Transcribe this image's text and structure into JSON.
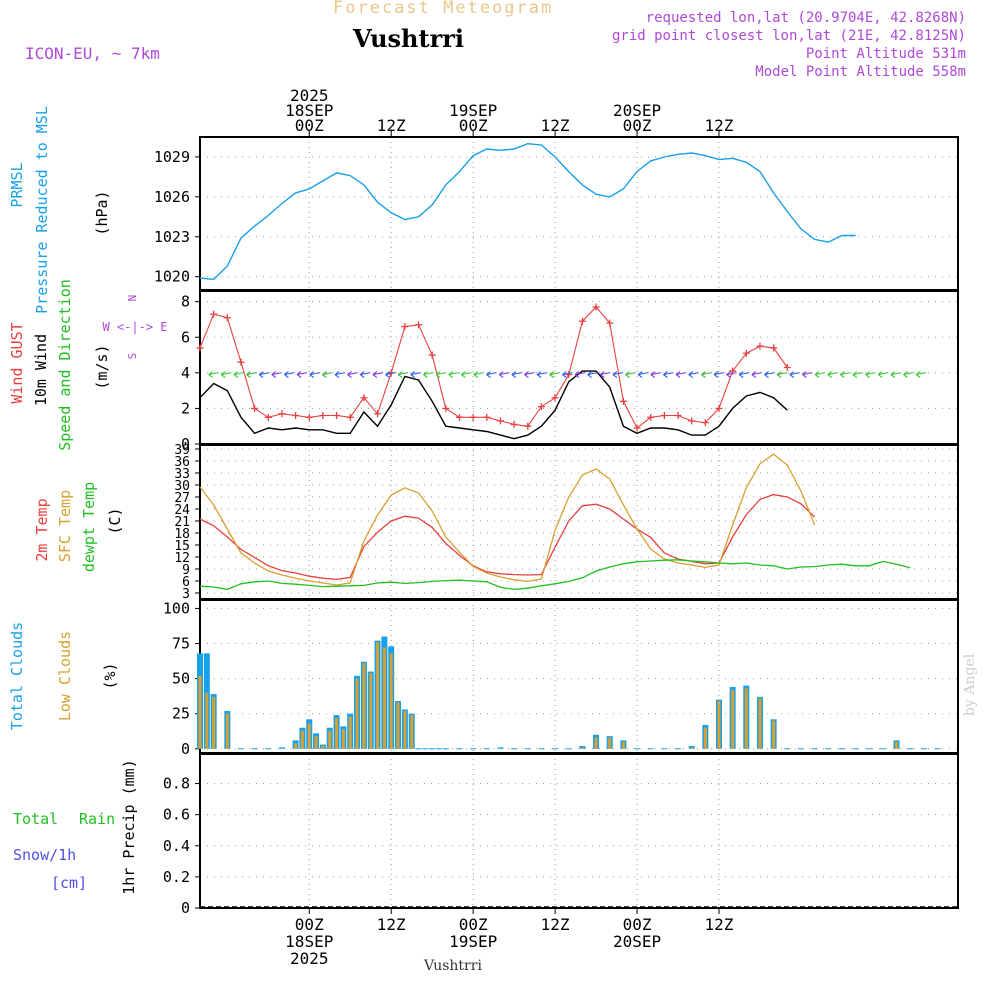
{
  "header": {
    "title_sup": "Forecast Meteogram",
    "location": "Vushtrri",
    "model": "ICON-EU, ~ 7km",
    "info_lines": [
      "requested lon,lat (20.9704E, 42.8268N)",
      "grid point closest lon,lat (21E, 42.8125N)",
      "Point Altitude 531m",
      "Model Point Altitude 558m"
    ],
    "credit": "by Angel",
    "footer": "Vushtrri"
  },
  "colors": {
    "pressure": "#18a0e8",
    "gust": "#e84040",
    "wind": "#000000",
    "windarrow": "#38c838",
    "temp": "#e84040",
    "sfc": "#d8a030",
    "dewpt": "#20c020",
    "total_clouds": "#18a0e8",
    "low_clouds": "#d8a030",
    "rain": "#20c020",
    "snow": "#5050e0",
    "purple": "#b048d8"
  },
  "chart_data": [
    {
      "type": "line",
      "title": "PRMSL Pressure Reduced to MSL",
      "ylabel": "(hPa)",
      "ylim": [
        1019,
        1030.5
      ],
      "yticks": [
        1020,
        1023,
        1026,
        1029
      ],
      "x_hours": [
        -16,
        -14,
        -12,
        -10,
        -8,
        -6,
        -4,
        -2,
        0,
        2,
        4,
        6,
        8,
        10,
        12,
        14,
        16,
        18,
        20,
        22,
        24,
        26,
        28,
        30,
        32,
        34,
        36,
        38,
        40,
        42,
        44,
        46,
        48,
        50,
        52,
        54,
        56,
        58,
        60,
        62,
        64,
        66,
        68,
        70,
        72,
        74,
        76,
        78,
        80,
        82,
        84,
        86,
        88,
        90,
        92
      ],
      "series": [
        {
          "name": "PRMSL",
          "values": [
            1019.9,
            1019.8,
            1020.8,
            1022.9,
            1023.8,
            1024.6,
            1025.5,
            1026.3,
            1026.6,
            1027.2,
            1027.8,
            1027.6,
            1026.9,
            1025.6,
            1024.8,
            1024.3,
            1024.5,
            1025.4,
            1026.9,
            1027.9,
            1029.1,
            1029.6,
            1029.5,
            1029.6,
            1030.0,
            1029.9,
            1029.0,
            1027.9,
            1026.9,
            1026.2,
            1026.0,
            1026.6,
            1027.9,
            1028.7,
            1029.0,
            1029.2,
            1029.3,
            1029.1,
            1028.8,
            1028.9,
            1028.6,
            1027.9,
            1026.3,
            1024.9,
            1023.6,
            1022.8,
            1022.6,
            1023.1,
            1023.1
          ]
        }
      ]
    },
    {
      "type": "line",
      "title": "Wind GUST / 10m Wind Speed and Direction",
      "ylabel": "(m/s)",
      "ylim": [
        0,
        8.6
      ],
      "yticks": [
        0,
        2,
        4,
        6,
        8
      ],
      "compass": [
        "N",
        "W <-|-> E",
        "S"
      ],
      "x_hours": [
        -16,
        -14,
        -12,
        -10,
        -8,
        -6,
        -4,
        -2,
        0,
        2,
        4,
        6,
        8,
        10,
        12,
        14,
        16,
        18,
        20,
        22,
        24,
        26,
        28,
        30,
        32,
        34,
        36,
        38,
        40,
        42,
        44,
        46,
        48,
        50,
        52,
        54,
        56,
        58,
        60,
        62,
        64,
        66,
        68,
        70,
        72,
        74,
        76,
        78,
        80,
        82,
        84,
        86,
        88,
        90,
        92
      ],
      "series": [
        {
          "name": "Wind GUST",
          "values": [
            5.4,
            7.3,
            7.1,
            4.6,
            2.0,
            1.5,
            1.7,
            1.6,
            1.5,
            1.6,
            1.6,
            1.5,
            2.6,
            1.7,
            4.0,
            6.6,
            6.7,
            5.0,
            2.0,
            1.5,
            1.5,
            1.5,
            1.3,
            1.1,
            1.0,
            2.1,
            2.6,
            3.9,
            6.9,
            7.7,
            6.8,
            2.4,
            0.9,
            1.5,
            1.6,
            1.6,
            1.3,
            1.2,
            2.0,
            4.1,
            5.1,
            5.5,
            5.4,
            4.3
          ]
        },
        {
          "name": "10m Wind",
          "values": [
            2.6,
            3.4,
            3.0,
            1.5,
            0.6,
            0.9,
            0.8,
            0.9,
            0.8,
            0.8,
            0.6,
            0.6,
            1.8,
            1.0,
            2.2,
            3.8,
            3.6,
            2.4,
            1.0,
            0.9,
            0.8,
            0.7,
            0.5,
            0.3,
            0.5,
            1.0,
            1.9,
            3.5,
            4.1,
            4.1,
            3.2,
            1.0,
            0.6,
            0.9,
            0.9,
            0.8,
            0.5,
            0.5,
            1.0,
            2.0,
            2.7,
            2.9,
            2.6,
            1.9
          ]
        }
      ]
    },
    {
      "type": "line",
      "title": "2m Temp / SFC Temp / dewpt Temp",
      "ylabel": "(C)",
      "ylim": [
        1.5,
        40
      ],
      "yticks": [
        3,
        6,
        9,
        12,
        15,
        18,
        21,
        24,
        27,
        30,
        33,
        36,
        39
      ],
      "x_hours": [
        -16,
        -14,
        -12,
        -10,
        -8,
        -6,
        -4,
        -2,
        0,
        2,
        4,
        6,
        8,
        10,
        12,
        14,
        16,
        18,
        20,
        22,
        24,
        26,
        28,
        30,
        32,
        34,
        36,
        38,
        40,
        42,
        44,
        46,
        48,
        50,
        52,
        54,
        56,
        58,
        60,
        62,
        64,
        66,
        68,
        70,
        72,
        74,
        76,
        78,
        80,
        82,
        84,
        86,
        88,
        90,
        92
      ],
      "series": [
        {
          "name": "2m Temp",
          "values": [
            21.5,
            19.8,
            17.0,
            13.9,
            11.9,
            9.8,
            8.6,
            8.0,
            7.2,
            6.7,
            6.4,
            6.9,
            14.6,
            18.2,
            21.0,
            22.2,
            21.7,
            19.4,
            15.4,
            12.4,
            9.8,
            8.3,
            7.8,
            7.6,
            7.5,
            7.6,
            14.5,
            21.0,
            24.8,
            25.2,
            24.0,
            21.5,
            19.0,
            16.9,
            13.0,
            11.5,
            10.9,
            10.3,
            10.5,
            17.0,
            22.6,
            26.4,
            27.6,
            27.0,
            25.3,
            22.0
          ]
        },
        {
          "name": "SFC Temp",
          "values": [
            29.5,
            25.0,
            19.0,
            13.0,
            10.5,
            8.5,
            7.5,
            6.7,
            6.0,
            5.5,
            5.0,
            5.5,
            16.0,
            22.5,
            27.5,
            29.3,
            28.0,
            23.5,
            17.0,
            13.2,
            9.6,
            8.0,
            7.0,
            6.3,
            5.9,
            6.5,
            18.7,
            27.0,
            32.5,
            34.0,
            31.5,
            25.0,
            19.0,
            14.0,
            11.5,
            10.5,
            10.0,
            9.4,
            10.0,
            20.0,
            29.3,
            35.3,
            37.7,
            35.0,
            28.5,
            20.0
          ]
        },
        {
          "name": "dewpt Temp",
          "values": [
            4.7,
            4.5,
            3.9,
            5.3,
            5.8,
            6.0,
            5.4,
            5.2,
            4.9,
            4.6,
            4.7,
            4.8,
            4.9,
            5.5,
            5.7,
            5.4,
            5.6,
            5.9,
            6.1,
            6.2,
            6.0,
            5.8,
            4.4,
            3.9,
            4.2,
            4.8,
            5.3,
            5.9,
            6.8,
            8.5,
            9.5,
            10.3,
            10.8,
            11.0,
            11.2,
            11.3,
            11.0,
            10.8,
            10.5,
            10.3,
            10.5,
            10.0,
            9.8,
            9.0,
            9.5,
            9.6,
            10.0,
            10.2,
            9.8,
            9.8,
            10.9,
            10.2,
            9.3
          ]
        }
      ]
    },
    {
      "type": "bar",
      "title": "Total Clouds / Low Clouds",
      "ylabel": "(%)",
      "ylim": [
        -3,
        106
      ],
      "yticks": [
        0,
        25,
        50,
        75,
        100
      ],
      "x_hours": [
        -16,
        -15,
        -14,
        -12,
        -10,
        -8,
        -6,
        -4,
        -2,
        -1,
        0,
        1,
        2,
        3,
        4,
        5,
        6,
        7,
        8,
        9,
        10,
        11,
        12,
        13,
        14,
        15,
        16,
        17,
        18,
        19,
        20,
        22,
        24,
        26,
        28,
        30,
        32,
        34,
        36,
        38,
        40,
        42,
        44,
        46,
        48,
        50,
        52,
        54,
        56,
        58,
        60,
        62,
        64,
        66,
        68,
        70,
        72,
        74,
        76,
        78,
        80,
        82,
        84,
        86,
        88,
        90,
        92
      ],
      "series": [
        {
          "name": "Total Clouds",
          "values": [
            68,
            68,
            39,
            27,
            0,
            0,
            0,
            1,
            6,
            15,
            21,
            11,
            3,
            15,
            24,
            16,
            25,
            52,
            62,
            55,
            77,
            80,
            73,
            34,
            28,
            25,
            0,
            0,
            0,
            0,
            0,
            0,
            0,
            0,
            1,
            0,
            0,
            0,
            0,
            0,
            2,
            10,
            9,
            6,
            0,
            0,
            0,
            0,
            2,
            17,
            35,
            44,
            45,
            37,
            21,
            0,
            0,
            0,
            0,
            0,
            0,
            0,
            0,
            6,
            0,
            0,
            0
          ]
        },
        {
          "name": "Low Clouds",
          "values": [
            52,
            40,
            37,
            25,
            0,
            0,
            0,
            0,
            4,
            13,
            18,
            9,
            2,
            13,
            22,
            14,
            23,
            50,
            61,
            54,
            76,
            72,
            68,
            33,
            27,
            24,
            0,
            0,
            0,
            0,
            0,
            0,
            0,
            0,
            0,
            0,
            0,
            0,
            0,
            0,
            1,
            8,
            8,
            5,
            0,
            0,
            0,
            0,
            1,
            15,
            34,
            42,
            43,
            36,
            20,
            0,
            0,
            0,
            0,
            0,
            0,
            0,
            0,
            5,
            0,
            0,
            0
          ]
        }
      ]
    },
    {
      "type": "bar",
      "title": "Total Rain / Snow/1h [cm]",
      "ylabel": "1hr Precip (mm)",
      "ylim": [
        0,
        0.99
      ],
      "yticks": [
        0,
        0.2,
        0.4,
        0.6,
        0.8
      ],
      "series": [
        {
          "name": "Total Rain",
          "values": []
        },
        {
          "name": "Snow/1h",
          "values": []
        }
      ]
    }
  ],
  "time_axis": {
    "top": [
      {
        "hour": 0,
        "lines": [
          "2025",
          "18SEP",
          "00Z"
        ]
      },
      {
        "hour": 12,
        "lines": [
          "12Z"
        ]
      },
      {
        "hour": 24,
        "lines": [
          "19SEP",
          "00Z"
        ]
      },
      {
        "hour": 36,
        "lines": [
          "12Z"
        ]
      },
      {
        "hour": 48,
        "lines": [
          "20SEP",
          "00Z"
        ]
      },
      {
        "hour": 60,
        "lines": [
          "12Z"
        ]
      }
    ],
    "bottom": [
      {
        "hour": 0,
        "lines": [
          "00Z",
          "18SEP",
          "2025"
        ]
      },
      {
        "hour": 12,
        "lines": [
          "12Z"
        ]
      },
      {
        "hour": 24,
        "lines": [
          "00Z",
          "19SEP"
        ]
      },
      {
        "hour": 36,
        "lines": [
          "12Z"
        ]
      },
      {
        "hour": 48,
        "lines": [
          "00Z",
          "20SEP"
        ]
      },
      {
        "hour": 60,
        "lines": [
          "12Z"
        ]
      }
    ]
  },
  "panel_labels": {
    "pressure": [
      "PRMSL",
      "Pressure Reduced to MSL"
    ],
    "wind": [
      "Wind GUST",
      "10m Wind",
      "Speed and Direction"
    ],
    "temp": [
      "2m Temp",
      "SFC Temp",
      "dewpt Temp"
    ],
    "clouds": [
      "Total Clouds",
      "Low Clouds"
    ],
    "precip": [
      "Total",
      "Rain",
      "Snow/1h",
      "[cm]"
    ]
  }
}
